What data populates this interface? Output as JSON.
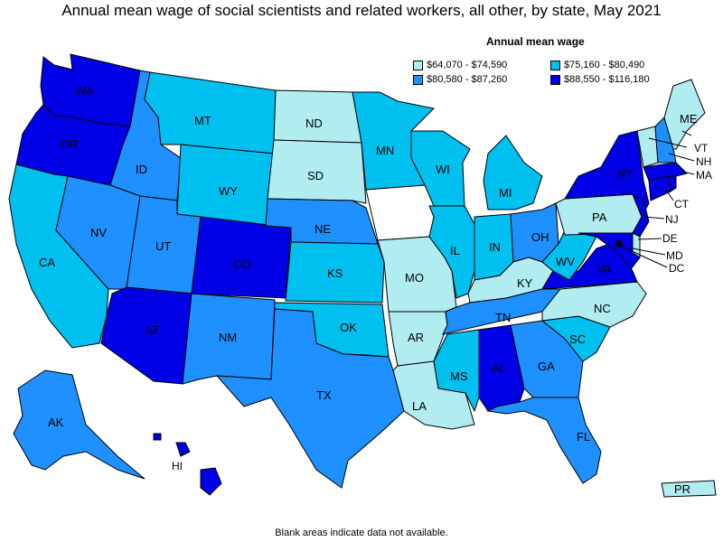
{
  "title": "Annual mean wage of social scientists and related workers, all other, by state, May 2021",
  "legend": {
    "title": "Annual mean wage",
    "items": [
      {
        "label": "$64,070 - $74,590",
        "color": "#b0ecf0"
      },
      {
        "label": "$75,160 - $80,490",
        "color": "#00c0f0"
      },
      {
        "label": "$80,580 - $87,260",
        "color": "#1e90ff"
      },
      {
        "label": "$88,550 - $116,180",
        "color": "#0000e6"
      }
    ]
  },
  "footnote": "Blank areas indicate data not available.",
  "states": {
    "WA": {
      "label": "WA",
      "cls": 3
    },
    "OR": {
      "label": "OR",
      "cls": 3
    },
    "CA": {
      "label": "CA",
      "cls": 1
    },
    "ID": {
      "label": "ID",
      "cls": 2
    },
    "NV": {
      "label": "NV",
      "cls": 2
    },
    "MT": {
      "label": "MT",
      "cls": 1
    },
    "WY": {
      "label": "WY",
      "cls": 1
    },
    "UT": {
      "label": "UT",
      "cls": 2
    },
    "AZ": {
      "label": "AZ",
      "cls": 3
    },
    "CO": {
      "label": "CO",
      "cls": 3
    },
    "NM": {
      "label": "NM",
      "cls": 2
    },
    "ND": {
      "label": "ND",
      "cls": 0
    },
    "SD": {
      "label": "SD",
      "cls": 0
    },
    "NE": {
      "label": "NE",
      "cls": 2
    },
    "KS": {
      "label": "KS",
      "cls": 1
    },
    "OK": {
      "label": "OK",
      "cls": 1
    },
    "TX": {
      "label": "TX",
      "cls": 2
    },
    "MN": {
      "label": "MN",
      "cls": 1
    },
    "IA": {
      "label": "",
      "cls": -1
    },
    "MO": {
      "label": "MO",
      "cls": 0
    },
    "AR": {
      "label": "AR",
      "cls": 0
    },
    "LA": {
      "label": "LA",
      "cls": 0
    },
    "WI": {
      "label": "WI",
      "cls": 1
    },
    "IL": {
      "label": "IL",
      "cls": 1
    },
    "MI": {
      "label": "MI",
      "cls": 1
    },
    "IN": {
      "label": "IN",
      "cls": 1
    },
    "OH": {
      "label": "OH",
      "cls": 2
    },
    "KY": {
      "label": "KY",
      "cls": 0
    },
    "TN": {
      "label": "TN",
      "cls": 2
    },
    "MS": {
      "label": "MS",
      "cls": 1
    },
    "AL": {
      "label": "AL",
      "cls": 3
    },
    "GA": {
      "label": "GA",
      "cls": 2
    },
    "FL": {
      "label": "FL",
      "cls": 2
    },
    "SC": {
      "label": "SC",
      "cls": 1
    },
    "NC": {
      "label": "NC",
      "cls": 0
    },
    "VA": {
      "label": "VA",
      "cls": 3
    },
    "WV": {
      "label": "WV",
      "cls": 1
    },
    "PA": {
      "label": "PA",
      "cls": 0
    },
    "NY": {
      "label": "NY",
      "cls": 3
    },
    "NJ": {
      "label": "NJ",
      "cls": 3
    },
    "DE": {
      "label": "DE",
      "cls": 0
    },
    "MD": {
      "label": "MD",
      "cls": 3
    },
    "DC": {
      "label": "DC",
      "cls": 3
    },
    "CT": {
      "label": "CT",
      "cls": 3
    },
    "RI": {
      "label": "",
      "cls": 3
    },
    "MA": {
      "label": "MA",
      "cls": 3
    },
    "VT": {
      "label": "VT",
      "cls": 0
    },
    "NH": {
      "label": "NH",
      "cls": 2
    },
    "ME": {
      "label": "ME",
      "cls": 0
    },
    "AK": {
      "label": "AK",
      "cls": 2
    },
    "HI": {
      "label": "HI",
      "cls": 3
    },
    "PR": {
      "label": "PR",
      "cls": 0
    }
  }
}
